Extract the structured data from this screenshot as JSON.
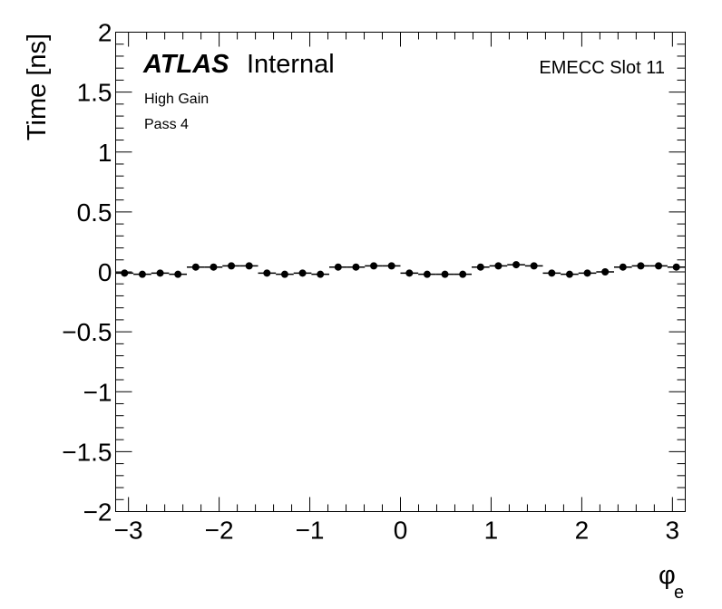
{
  "chart_data": {
    "type": "scatter",
    "title": "",
    "xlabel": "φ",
    "xlabel_sub": "e",
    "ylabel": "Time [ns]",
    "xlim": [
      -3.14159,
      3.14159
    ],
    "ylim": [
      -2,
      2
    ],
    "x_major_ticks": [
      -3,
      -2,
      -1,
      0,
      1,
      2,
      3
    ],
    "x_tick_labels": [
      "−3",
      "−2",
      "−1",
      "0",
      "1",
      "2",
      "3"
    ],
    "y_major_ticks": [
      -2,
      -1.5,
      -1,
      -0.5,
      0,
      0.5,
      1,
      1.5,
      2
    ],
    "y_tick_labels": [
      "−2",
      "−1.5",
      "−1",
      "−0.5",
      "0",
      "0.5",
      "1",
      "1.5",
      "2"
    ],
    "grid": false,
    "bin_width": 0.19635,
    "x": [
      -3.0434,
      -2.8471,
      -2.6507,
      -2.4544,
      -2.258,
      -2.0617,
      -1.8653,
      -1.669,
      -1.4726,
      -1.2763,
      -1.0799,
      -0.8836,
      -0.6872,
      -0.4909,
      -0.2945,
      -0.0982,
      0.0982,
      0.2945,
      0.4909,
      0.6872,
      0.8836,
      1.0799,
      1.2763,
      1.4726,
      1.669,
      1.8653,
      2.0617,
      2.258,
      2.4544,
      2.6507,
      2.8471,
      3.0434
    ],
    "y": [
      -0.01,
      -0.02,
      -0.01,
      -0.02,
      0.04,
      0.04,
      0.05,
      0.05,
      -0.01,
      -0.02,
      -0.01,
      -0.02,
      0.04,
      0.04,
      0.05,
      0.05,
      -0.01,
      -0.02,
      -0.02,
      -0.02,
      0.04,
      0.05,
      0.06,
      0.05,
      -0.01,
      -0.02,
      -0.01,
      0.0,
      0.04,
      0.05,
      0.05,
      0.04
    ]
  },
  "labels": {
    "atlas": "ATLAS",
    "atlas_status": "Internal",
    "gain": "High Gain",
    "pass": "Pass 4",
    "slot": "EMECC Slot 11"
  }
}
